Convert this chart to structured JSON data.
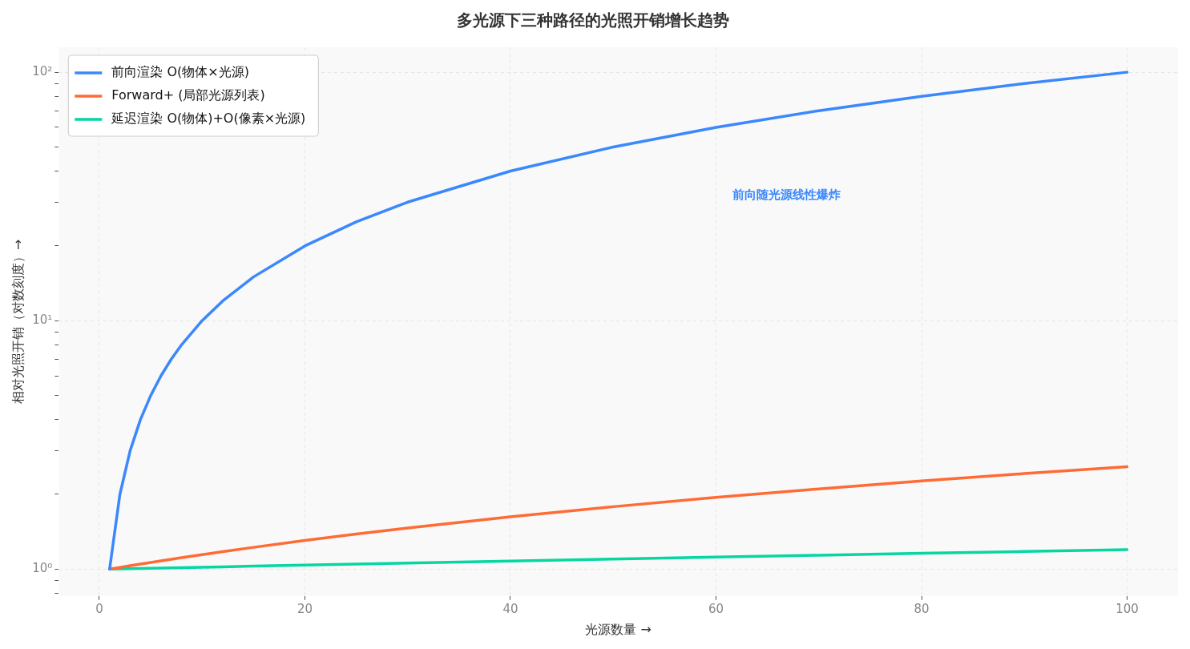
{
  "chart_data": {
    "type": "line",
    "title": "多光源下三种路径的光照开销增长趋势",
    "xlabel": "光源数量 →",
    "ylabel": "相对光照开销（对数刻度）→",
    "x": [
      1,
      2,
      3,
      4,
      5,
      6,
      7,
      8,
      10,
      12,
      15,
      20,
      25,
      30,
      40,
      50,
      60,
      70,
      80,
      90,
      100
    ],
    "series": [
      {
        "name": "前向渲染 O(物体×光源)",
        "color": "#3b88fd",
        "values": [
          1,
          2,
          3,
          4,
          5,
          6,
          7,
          8,
          10,
          12,
          15,
          20,
          25,
          30,
          40,
          50,
          60,
          70,
          80,
          90,
          100
        ]
      },
      {
        "name": "Forward+ (局部光源列表)",
        "color": "#ff6b35",
        "values": [
          1,
          1.016,
          1.032,
          1.048,
          1.064,
          1.08,
          1.096,
          1.112,
          1.144,
          1.176,
          1.224,
          1.304,
          1.384,
          1.464,
          1.624,
          1.784,
          1.944,
          2.104,
          2.264,
          2.424,
          2.584
        ]
      },
      {
        "name": "延迟渲染 O(物体)+O(像素×光源)",
        "color": "#06d6a0",
        "values": [
          1,
          1.002,
          1.004,
          1.006,
          1.008,
          1.01,
          1.012,
          1.014,
          1.018,
          1.022,
          1.028,
          1.038,
          1.048,
          1.058,
          1.078,
          1.098,
          1.118,
          1.138,
          1.158,
          1.178,
          1.198
        ]
      }
    ],
    "annotations": [
      "前向随光源线性爆炸"
    ],
    "log": "y",
    "xlim": [
      -3.95,
      104.95
    ],
    "ylim": [
      0.78,
      126
    ],
    "xticks": [
      0,
      20,
      40,
      60,
      80,
      100
    ],
    "yticks": [
      {
        "value": 0.8,
        "label": null
      },
      {
        "value": 0.9,
        "label": null
      },
      {
        "value": 1,
        "label": "10⁰"
      },
      {
        "value": 2,
        "label": null
      },
      {
        "value": 3,
        "label": null
      },
      {
        "value": 4,
        "label": null
      },
      {
        "value": 5,
        "label": null
      },
      {
        "value": 6,
        "label": null
      },
      {
        "value": 7,
        "label": null
      },
      {
        "value": 8,
        "label": null
      },
      {
        "value": 9,
        "label": null
      },
      {
        "value": 10,
        "label": "10¹"
      },
      {
        "value": 20,
        "label": null
      },
      {
        "value": 30,
        "label": null
      },
      {
        "value": 40,
        "label": null
      },
      {
        "value": 50,
        "label": null
      },
      {
        "value": 60,
        "label": null
      },
      {
        "value": 70,
        "label": null
      },
      {
        "value": 80,
        "label": null
      },
      {
        "value": 90,
        "label": null
      },
      {
        "value": 100,
        "label": "10²"
      }
    ],
    "grid": true,
    "legend": "top left",
    "marker": "none",
    "line_style": "solid"
  }
}
